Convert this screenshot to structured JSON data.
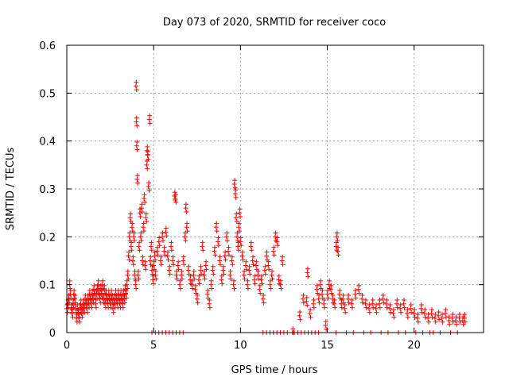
{
  "chart_data": {
    "type": "scatter",
    "title": "Day 073 of 2020, SRMTID for receiver coco",
    "xlabel": "GPS time / hours",
    "ylabel": "SRMTID / TECUs",
    "xlim": [
      0,
      24
    ],
    "ylim": [
      0,
      0.6
    ],
    "x_ticks": [
      0,
      5,
      10,
      15,
      20
    ],
    "x_tick_labels": [
      "0",
      "5",
      "10",
      "15",
      "20"
    ],
    "y_ticks": [
      0,
      0.1,
      0.2,
      0.3,
      0.4,
      0.5,
      0.6
    ],
    "y_tick_labels": [
      "0",
      "0.1",
      "0.2",
      "0.3",
      "0.4",
      "0.5",
      "0.6"
    ],
    "grid": true,
    "marker": "plus",
    "color": "#ff0000",
    "series": [
      {
        "name": "SRMTID",
        "points": [
          [
            0.0,
            0.05
          ],
          [
            0.05,
            0.06
          ],
          [
            0.1,
            0.07
          ],
          [
            0.15,
            0.1
          ],
          [
            0.2,
            0.08
          ],
          [
            0.25,
            0.05
          ],
          [
            0.3,
            0.04
          ],
          [
            0.35,
            0.06
          ],
          [
            0.4,
            0.08
          ],
          [
            0.45,
            0.07
          ],
          [
            0.5,
            0.05
          ],
          [
            0.55,
            0.03
          ],
          [
            0.6,
            0.05
          ],
          [
            0.65,
            0.04
          ],
          [
            0.7,
            0.03
          ],
          [
            0.75,
            0.05
          ],
          [
            0.8,
            0.06
          ],
          [
            0.85,
            0.04
          ],
          [
            0.9,
            0.05
          ],
          [
            0.95,
            0.06
          ],
          [
            1.0,
            0.05
          ],
          [
            1.05,
            0.07
          ],
          [
            1.1,
            0.06
          ],
          [
            1.15,
            0.05
          ],
          [
            1.2,
            0.07
          ],
          [
            1.25,
            0.06
          ],
          [
            1.3,
            0.08
          ],
          [
            1.35,
            0.07
          ],
          [
            1.4,
            0.06
          ],
          [
            1.45,
            0.08
          ],
          [
            1.5,
            0.07
          ],
          [
            1.55,
            0.09
          ],
          [
            1.6,
            0.08
          ],
          [
            1.65,
            0.06
          ],
          [
            1.7,
            0.08
          ],
          [
            1.75,
            0.09
          ],
          [
            1.8,
            0.1
          ],
          [
            1.85,
            0.08
          ],
          [
            1.9,
            0.07
          ],
          [
            1.95,
            0.09
          ],
          [
            2.0,
            0.08
          ],
          [
            2.05,
            0.1
          ],
          [
            2.1,
            0.07
          ],
          [
            2.15,
            0.09
          ],
          [
            2.2,
            0.06
          ],
          [
            2.25,
            0.08
          ],
          [
            2.3,
            0.07
          ],
          [
            2.35,
            0.06
          ],
          [
            2.4,
            0.08
          ],
          [
            2.45,
            0.07
          ],
          [
            2.5,
            0.06
          ],
          [
            2.55,
            0.08
          ],
          [
            2.6,
            0.07
          ],
          [
            2.65,
            0.05
          ],
          [
            2.7,
            0.07
          ],
          [
            2.75,
            0.06
          ],
          [
            2.8,
            0.08
          ],
          [
            2.85,
            0.07
          ],
          [
            2.9,
            0.06
          ],
          [
            2.95,
            0.08
          ],
          [
            3.0,
            0.07
          ],
          [
            3.05,
            0.06
          ],
          [
            3.1,
            0.08
          ],
          [
            3.15,
            0.07
          ],
          [
            3.2,
            0.06
          ],
          [
            3.25,
            0.08
          ],
          [
            3.3,
            0.07
          ],
          [
            3.35,
            0.09
          ],
          [
            3.4,
            0.08
          ],
          [
            3.45,
            0.1
          ],
          [
            3.5,
            0.12
          ],
          [
            3.55,
            0.16
          ],
          [
            3.6,
            0.2
          ],
          [
            3.65,
            0.24
          ],
          [
            3.7,
            0.18
          ],
          [
            3.75,
            0.22
          ],
          [
            3.8,
            0.15
          ],
          [
            3.85,
            0.2
          ],
          [
            3.9,
            0.12
          ],
          [
            3.95,
            0.1
          ],
          [
            3.98,
            0.515
          ],
          [
            4.0,
            0.44
          ],
          [
            4.02,
            0.39
          ],
          [
            4.05,
            0.32
          ],
          [
            4.1,
            0.12
          ],
          [
            4.15,
            0.18
          ],
          [
            4.2,
            0.25
          ],
          [
            4.25,
            0.2
          ],
          [
            4.3,
            0.26
          ],
          [
            4.35,
            0.15
          ],
          [
            4.4,
            0.22
          ],
          [
            4.45,
            0.28
          ],
          [
            4.5,
            0.14
          ],
          [
            4.55,
            0.24
          ],
          [
            4.6,
            0.35
          ],
          [
            4.62,
            0.38
          ],
          [
            4.65,
            0.37
          ],
          [
            4.7,
            0.305
          ],
          [
            4.75,
            0.445
          ],
          [
            4.8,
            0.15
          ],
          [
            4.85,
            0.18
          ],
          [
            4.9,
            0.13
          ],
          [
            4.95,
            0.11
          ],
          [
            5.0,
            0.14
          ],
          [
            5.05,
            0.16
          ],
          [
            5.1,
            0.12
          ],
          [
            5.2,
            0.17
          ],
          [
            5.3,
            0.19
          ],
          [
            5.4,
            0.15
          ],
          [
            5.5,
            0.2
          ],
          [
            5.6,
            0.17
          ],
          [
            5.7,
            0.21
          ],
          [
            5.8,
            0.16
          ],
          [
            5.9,
            0.13
          ],
          [
            6.0,
            0.18
          ],
          [
            6.1,
            0.15
          ],
          [
            6.2,
            0.285
          ],
          [
            6.25,
            0.28
          ],
          [
            6.3,
            0.12
          ],
          [
            6.4,
            0.14
          ],
          [
            6.5,
            0.1
          ],
          [
            6.6,
            0.12
          ],
          [
            6.7,
            0.15
          ],
          [
            6.8,
            0.2
          ],
          [
            6.85,
            0.26
          ],
          [
            6.9,
            0.22
          ],
          [
            7.0,
            0.13
          ],
          [
            7.1,
            0.11
          ],
          [
            7.2,
            0.1
          ],
          [
            7.3,
            0.12
          ],
          [
            7.4,
            0.09
          ],
          [
            7.5,
            0.07
          ],
          [
            7.6,
            0.11
          ],
          [
            7.7,
            0.13
          ],
          [
            7.8,
            0.18
          ],
          [
            7.9,
            0.12
          ],
          [
            8.0,
            0.14
          ],
          [
            8.1,
            0.08
          ],
          [
            8.2,
            0.06
          ],
          [
            8.3,
            0.1
          ],
          [
            8.4,
            0.13
          ],
          [
            8.5,
            0.17
          ],
          [
            8.6,
            0.22
          ],
          [
            8.7,
            0.19
          ],
          [
            8.8,
            0.15
          ],
          [
            8.9,
            0.11
          ],
          [
            9.0,
            0.13
          ],
          [
            9.1,
            0.16
          ],
          [
            9.2,
            0.2
          ],
          [
            9.3,
            0.17
          ],
          [
            9.4,
            0.12
          ],
          [
            9.5,
            0.15
          ],
          [
            9.6,
            0.1
          ],
          [
            9.65,
            0.31
          ],
          [
            9.7,
            0.29
          ],
          [
            9.75,
            0.24
          ],
          [
            9.8,
            0.2
          ],
          [
            9.85,
            0.18
          ],
          [
            9.9,
            0.22
          ],
          [
            9.95,
            0.25
          ],
          [
            10.0,
            0.19
          ],
          [
            10.1,
            0.16
          ],
          [
            10.2,
            0.12
          ],
          [
            10.3,
            0.14
          ],
          [
            10.4,
            0.1
          ],
          [
            10.5,
            0.13
          ],
          [
            10.6,
            0.18
          ],
          [
            10.7,
            0.15
          ],
          [
            10.8,
            0.11
          ],
          [
            10.9,
            0.14
          ],
          [
            11.0,
            0.12
          ],
          [
            11.1,
            0.09
          ],
          [
            11.2,
            0.11
          ],
          [
            11.3,
            0.07
          ],
          [
            11.4,
            0.13
          ],
          [
            11.5,
            0.16
          ],
          [
            11.6,
            0.14
          ],
          [
            11.7,
            0.1
          ],
          [
            11.8,
            0.12
          ],
          [
            11.9,
            0.17
          ],
          [
            12.0,
            0.2
          ],
          [
            12.1,
            0.19
          ],
          [
            12.2,
            0.11
          ],
          [
            12.3,
            0.1
          ],
          [
            12.4,
            0.15
          ],
          [
            13.0,
            0.0
          ],
          [
            13.4,
            0.035
          ],
          [
            13.6,
            0.07
          ],
          [
            13.8,
            0.065
          ],
          [
            13.85,
            0.125
          ],
          [
            14.0,
            0.04
          ],
          [
            14.2,
            0.06
          ],
          [
            14.4,
            0.09
          ],
          [
            14.5,
            0.07
          ],
          [
            14.6,
            0.1
          ],
          [
            14.7,
            0.08
          ],
          [
            14.8,
            0.06
          ],
          [
            14.9,
            0.015
          ],
          [
            15.0,
            0.08
          ],
          [
            15.1,
            0.1
          ],
          [
            15.2,
            0.09
          ],
          [
            15.3,
            0.07
          ],
          [
            15.4,
            0.06
          ],
          [
            15.5,
            0.18
          ],
          [
            15.55,
            0.2
          ],
          [
            15.6,
            0.17
          ],
          [
            15.7,
            0.08
          ],
          [
            15.8,
            0.06
          ],
          [
            15.9,
            0.07
          ],
          [
            16.0,
            0.05
          ],
          [
            16.2,
            0.07
          ],
          [
            16.4,
            0.06
          ],
          [
            16.6,
            0.08
          ],
          [
            16.8,
            0.09
          ],
          [
            17.0,
            0.07
          ],
          [
            17.2,
            0.06
          ],
          [
            17.4,
            0.05
          ],
          [
            17.6,
            0.06
          ],
          [
            17.8,
            0.05
          ],
          [
            18.0,
            0.06
          ],
          [
            18.2,
            0.07
          ],
          [
            18.4,
            0.06
          ],
          [
            18.6,
            0.05
          ],
          [
            18.8,
            0.04
          ],
          [
            19.0,
            0.06
          ],
          [
            19.2,
            0.05
          ],
          [
            19.4,
            0.06
          ],
          [
            19.6,
            0.04
          ],
          [
            19.8,
            0.05
          ],
          [
            20.0,
            0.04
          ],
          [
            20.2,
            0.03
          ],
          [
            20.4,
            0.05
          ],
          [
            20.6,
            0.04
          ],
          [
            20.8,
            0.03
          ],
          [
            21.0,
            0.04
          ],
          [
            21.2,
            0.03
          ],
          [
            21.4,
            0.035
          ],
          [
            21.6,
            0.03
          ],
          [
            21.8,
            0.04
          ],
          [
            22.0,
            0.025
          ],
          [
            22.2,
            0.03
          ],
          [
            22.4,
            0.025
          ],
          [
            22.6,
            0.03
          ],
          [
            22.8,
            0.025
          ],
          [
            22.9,
            0.03
          ]
        ],
        "zero_markers": [
          4.9,
          5.1,
          5.3,
          5.5,
          5.7,
          5.9,
          6.1,
          6.3,
          6.5,
          6.7,
          11.3,
          11.5,
          11.7,
          11.9,
          12.1,
          12.3,
          12.5,
          12.7,
          13.1,
          13.3,
          13.5,
          13.7,
          13.9,
          14.1,
          14.3,
          14.5,
          15.5,
          16.1,
          16.5,
          17.1,
          17.5,
          18.1,
          18.5,
          19.1,
          19.5,
          20.1,
          20.5,
          20.9,
          21.1,
          21.5,
          22.1,
          22.5
        ]
      }
    ]
  }
}
